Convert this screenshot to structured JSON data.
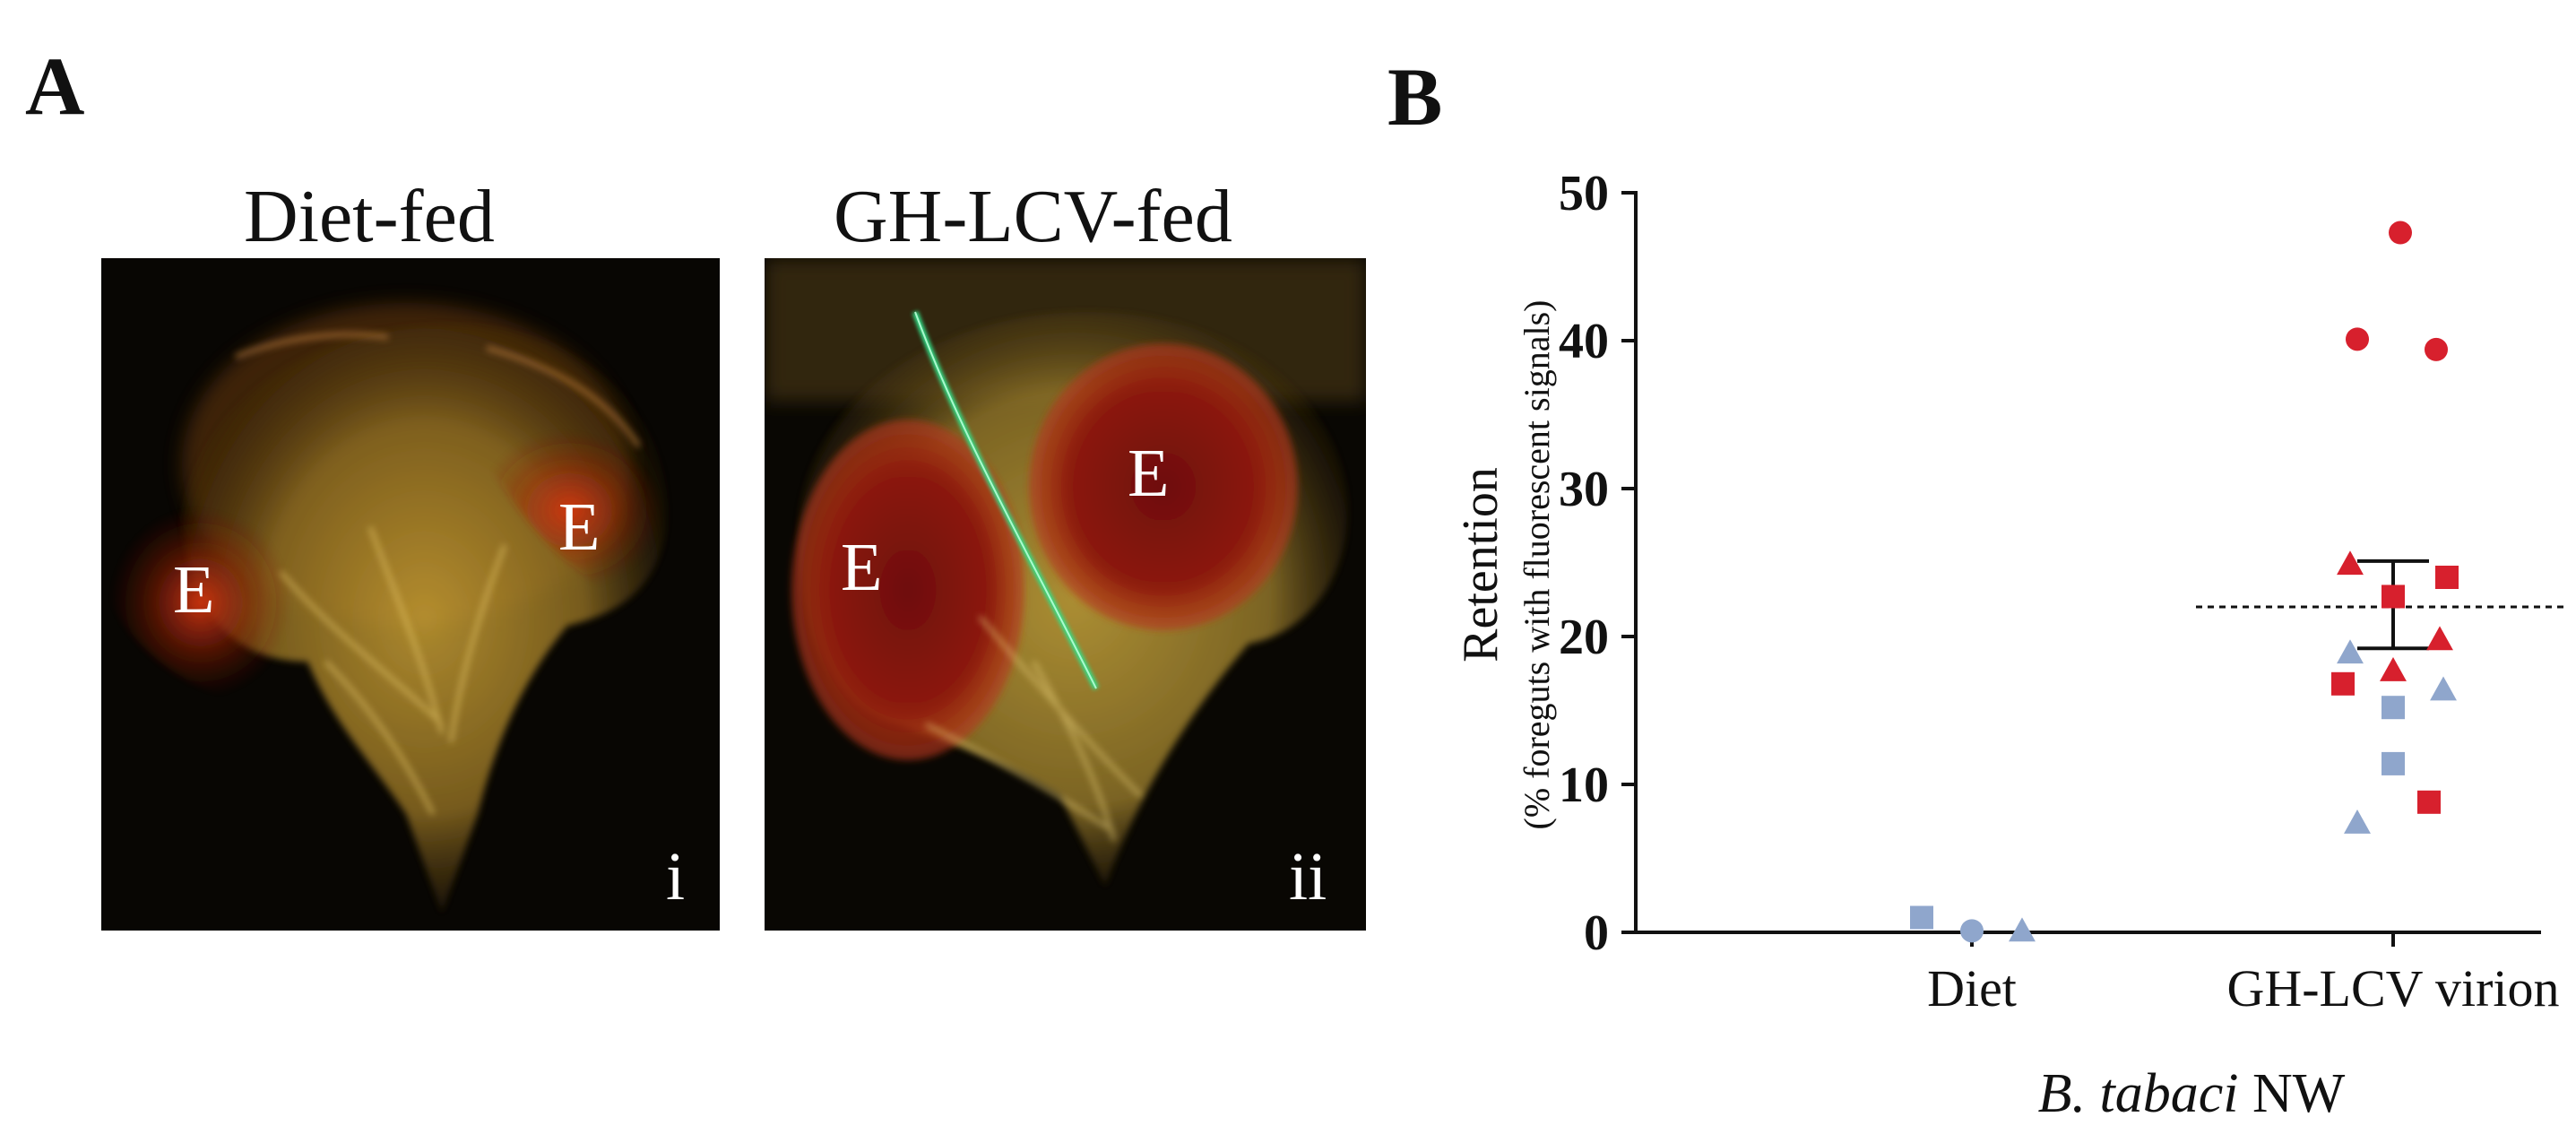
{
  "panels": {
    "a_label": "A",
    "b_label": "B"
  },
  "micrographs": [
    {
      "title": "Diet-fed",
      "tags": [
        "E",
        "E"
      ],
      "index_label": "i"
    },
    {
      "title": "GH-LCV-fed",
      "tags": [
        "E",
        "E"
      ],
      "index_label": "ii"
    }
  ],
  "colors": {
    "red": "#d7202d",
    "blue": "#8fa6cc",
    "axis": "#111111"
  },
  "chart_data": {
    "type": "scatter",
    "categories": [
      "Diet",
      "GH-LCV virion"
    ],
    "ylabel": "Retention",
    "ylabel_sub": "(% foreguts with fluorescent signals)",
    "xlabel_italic": "B. tabaci",
    "xlabel_rest": " NW",
    "ylim": [
      0,
      50
    ],
    "yticks": [
      0,
      10,
      20,
      30,
      40,
      50
    ],
    "mean": [
      0,
      22
    ],
    "sem": [
      null,
      [
        19.2,
        25.1
      ]
    ],
    "points": [
      {
        "cat": 0,
        "offset": -0.14,
        "y": 1.0,
        "shape": "square",
        "color": "blue"
      },
      {
        "cat": 0,
        "offset": 0.0,
        "y": 0.1,
        "shape": "circle",
        "color": "blue"
      },
      {
        "cat": 0,
        "offset": 0.14,
        "y": 0.1,
        "shape": "triangle",
        "color": "blue"
      },
      {
        "cat": 1,
        "offset": 0.02,
        "y": 47.3,
        "shape": "circle",
        "color": "red"
      },
      {
        "cat": 1,
        "offset": -0.1,
        "y": 40.1,
        "shape": "circle",
        "color": "red"
      },
      {
        "cat": 1,
        "offset": 0.12,
        "y": 39.4,
        "shape": "circle",
        "color": "red"
      },
      {
        "cat": 1,
        "offset": -0.12,
        "y": 24.9,
        "shape": "triangle",
        "color": "red"
      },
      {
        "cat": 1,
        "offset": 0.15,
        "y": 24.0,
        "shape": "square",
        "color": "red"
      },
      {
        "cat": 1,
        "offset": 0.0,
        "y": 22.7,
        "shape": "square",
        "color": "red"
      },
      {
        "cat": 1,
        "offset": 0.13,
        "y": 19.8,
        "shape": "triangle",
        "color": "red"
      },
      {
        "cat": 1,
        "offset": -0.12,
        "y": 18.9,
        "shape": "triangle",
        "color": "blue"
      },
      {
        "cat": 1,
        "offset": 0.0,
        "y": 17.7,
        "shape": "triangle",
        "color": "red"
      },
      {
        "cat": 1,
        "offset": -0.14,
        "y": 16.8,
        "shape": "square",
        "color": "red"
      },
      {
        "cat": 1,
        "offset": 0.14,
        "y": 16.4,
        "shape": "triangle",
        "color": "blue"
      },
      {
        "cat": 1,
        "offset": 0.0,
        "y": 15.2,
        "shape": "square",
        "color": "blue"
      },
      {
        "cat": 1,
        "offset": 0.0,
        "y": 11.4,
        "shape": "square",
        "color": "blue"
      },
      {
        "cat": 1,
        "offset": 0.1,
        "y": 8.8,
        "shape": "square",
        "color": "red"
      },
      {
        "cat": 1,
        "offset": -0.1,
        "y": 7.4,
        "shape": "triangle",
        "color": "blue"
      }
    ]
  }
}
